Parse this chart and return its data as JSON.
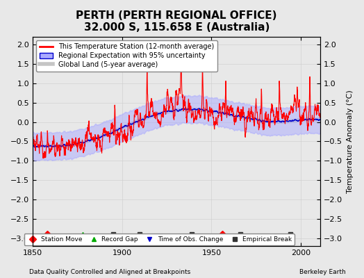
{
  "title": "PERTH (PERTH REGIONAL OFFICE)",
  "subtitle": "32.000 S, 115.658 E (Australia)",
  "footer_left": "Data Quality Controlled and Aligned at Breakpoints",
  "footer_right": "Berkeley Earth",
  "ylabel": "Temperature Anomaly (°C)",
  "xlim": [
    1850,
    2011
  ],
  "ylim": [
    -3.2,
    2.2
  ],
  "yticks": [
    -3,
    -2.5,
    -2,
    -1.5,
    -1,
    -0.5,
    0,
    0.5,
    1,
    1.5,
    2
  ],
  "xticks": [
    1850,
    1900,
    1950,
    2000
  ],
  "color_station": "#FF0000",
  "color_regional_line": "#0000CC",
  "color_regional_fill": "#AAAAFF",
  "color_global": "#BBBBBB",
  "bg_color": "#E8E8E8",
  "legend_entries": [
    "This Temperature Station (12-month average)",
    "Regional Expectation with 95% uncertainty",
    "Global Land (5-year average)"
  ],
  "marker_legend": [
    {
      "label": "Station Move",
      "color": "#FF0000",
      "marker": "D"
    },
    {
      "label": "Record Gap",
      "color": "#00AA00",
      "marker": "^"
    },
    {
      "label": "Time of Obs. Change",
      "color": "#0000CC",
      "marker": "v"
    },
    {
      "label": "Empirical Break",
      "color": "#333333",
      "marker": "s"
    }
  ],
  "station_markers": [
    {
      "year": 1858,
      "type": "D",
      "color": "#FF0000"
    },
    {
      "year": 1878,
      "type": "^",
      "color": "#00AA00"
    },
    {
      "year": 1895,
      "type": "s",
      "color": "#333333"
    },
    {
      "year": 1910,
      "type": "s",
      "color": "#333333"
    },
    {
      "year": 1939,
      "type": "s",
      "color": "#333333"
    },
    {
      "year": 1956,
      "type": "D",
      "color": "#FF0000"
    },
    {
      "year": 1966,
      "type": "s",
      "color": "#333333"
    },
    {
      "year": 1994,
      "type": "s",
      "color": "#333333"
    }
  ]
}
